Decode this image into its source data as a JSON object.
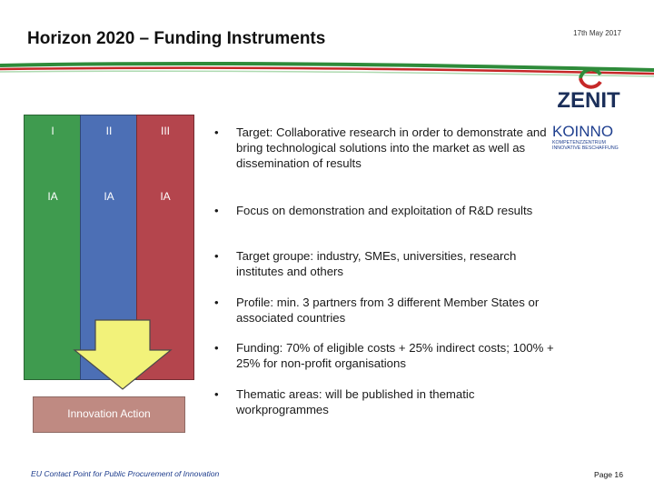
{
  "header": {
    "title": "Horizon 2020 – Funding Instruments",
    "date": "17th May 2017"
  },
  "logos": {
    "zenit": "ZENIT",
    "koinno_main": "KOINNO",
    "koinno_sub1": "KOMPETENZZENTRUM",
    "koinno_sub2": "INNOVATIVE BESCHAFFUNG"
  },
  "columns": [
    {
      "top_label": "I",
      "bottom_label": "IA",
      "color": "#3f9b4f"
    },
    {
      "top_label": "II",
      "bottom_label": "IA",
      "color": "#4c6fb5"
    },
    {
      "top_label": "III",
      "bottom_label": "IA",
      "color": "#b4454d"
    }
  ],
  "arrow": {
    "color": "#f2f27a",
    "icon": "down-arrow-icon"
  },
  "innovation_action": {
    "label": "Innovation Action",
    "color": "#bf8a82"
  },
  "bullets": [
    {
      "marker": "•",
      "text": "Target: Collaborative research in order to demonstrate and bring technological solutions into the market as well as dissemination of results"
    },
    {
      "marker": "•",
      "text": "Focus on demonstration and exploitation of R&D results"
    },
    {
      "marker": "•",
      "text": "Target groupe: industry, SMEs, universities, research institutes and others"
    },
    {
      "marker": "•",
      "text": "Profile: min. 3 partners from 3 different Member States or associated countries"
    },
    {
      "marker": "•",
      "text": "Funding: 70% of eligible costs + 25% indirect costs; 100% + 25% for non-profit organisations"
    },
    {
      "marker": "•",
      "text": "Thematic areas: will be published in thematic workprogrammes"
    }
  ],
  "footer": {
    "text": "EU Contact Point for Public Procurement of Innovation",
    "page": "Page 16"
  },
  "colors": {
    "swoosh_green": "#2e8b3a",
    "swoosh_red": "#c62828",
    "footer_blue": "#1c3b8c"
  }
}
